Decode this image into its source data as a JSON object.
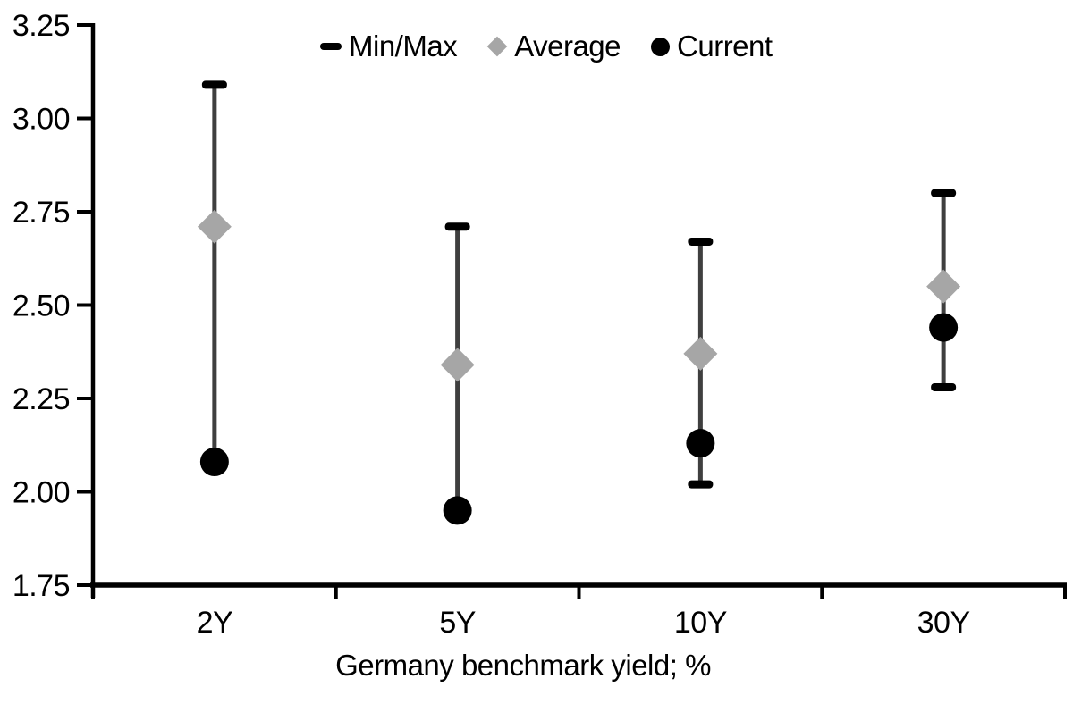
{
  "chart_data": {
    "type": "scatter",
    "subtype": "min-max-range-with-markers",
    "xlabel": "Germany benchmark yield; %",
    "ylabel": "",
    "ylim": [
      1.75,
      3.25
    ],
    "ytick_step": 0.25,
    "ytick_labels": [
      "3.25",
      "3.00",
      "2.75",
      "2.50",
      "2.25",
      "2.00",
      "1.75"
    ],
    "categories": [
      "2Y",
      "5Y",
      "10Y",
      "30Y"
    ],
    "grid": false,
    "legend_position": "top",
    "legend": [
      {
        "label": "Min/Max",
        "marker": "dash",
        "color": "#000000"
      },
      {
        "label": "Average",
        "marker": "diamond",
        "color": "#A6A6A6"
      },
      {
        "label": "Current",
        "marker": "circle",
        "color": "#000000"
      }
    ],
    "series": [
      {
        "category": "2Y",
        "max": 3.09,
        "average": 2.71,
        "current": 2.08,
        "min": 2.08,
        "min_cap_visible": false
      },
      {
        "category": "5Y",
        "max": 2.71,
        "average": 2.34,
        "current": 1.95,
        "min": 1.95,
        "min_cap_visible": false
      },
      {
        "category": "10Y",
        "max": 2.67,
        "average": 2.37,
        "current": 2.13,
        "min": 2.02,
        "min_cap_visible": true
      },
      {
        "category": "30Y",
        "max": 2.8,
        "average": 2.55,
        "current": 2.44,
        "min": 2.28,
        "min_cap_visible": true
      }
    ]
  },
  "colors": {
    "background": "#FFFFFF",
    "axis": "#000000",
    "text": "#000000",
    "error_line": "#3F3F3F",
    "cap": "#000000",
    "average_marker": "#A6A6A6",
    "current_marker": "#000000"
  }
}
